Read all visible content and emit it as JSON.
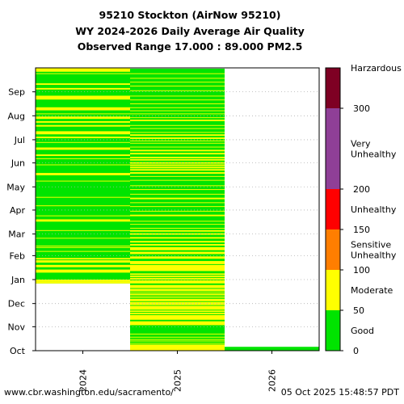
{
  "chart_data": {
    "type": "heatmap",
    "title_lines": [
      "95210 Stockton (AirNow 95210)",
      "WY 2024-2026 Daily Average Air Quality",
      "Observed Range 17.000 : 89.000 PM2.5"
    ],
    "x_categories": [
      "2024",
      "2025",
      "2026"
    ],
    "y_month_labels": [
      "Oct",
      "Nov",
      "Dec",
      "Jan",
      "Feb",
      "Mar",
      "Apr",
      "May",
      "Jun",
      "Jul",
      "Aug",
      "Sep"
    ],
    "y_month_start_days": [
      0,
      31,
      61,
      92,
      123,
      151,
      182,
      212,
      243,
      273,
      304,
      335
    ],
    "water_year_days": 366,
    "grid": "dotted horizontal at month starts",
    "category_colors": {
      "good": "#00e400",
      "moderate": "#ffff00"
    },
    "columns": [
      {
        "water_year": "2024",
        "first_day": 87,
        "last_day": 365,
        "moderate_ranges": [
          [
            87,
            88
          ],
          [
            89,
            91
          ],
          [
            101,
            104
          ],
          [
            108,
            110
          ],
          [
            114,
            116
          ],
          [
            118,
            119
          ],
          [
            128,
            128
          ],
          [
            133,
            133
          ],
          [
            135,
            135
          ],
          [
            145,
            145
          ],
          [
            155,
            155
          ],
          [
            167,
            169
          ],
          [
            174,
            174
          ],
          [
            187,
            187
          ],
          [
            198,
            198
          ],
          [
            219,
            219
          ],
          [
            227,
            229
          ],
          [
            240,
            240
          ],
          [
            248,
            248
          ],
          [
            252,
            253
          ],
          [
            260,
            262
          ],
          [
            269,
            269
          ],
          [
            275,
            276
          ],
          [
            280,
            283
          ],
          [
            290,
            291
          ],
          [
            295,
            296
          ],
          [
            300,
            302
          ],
          [
            306,
            306
          ],
          [
            311,
            314
          ],
          [
            325,
            329
          ],
          [
            338,
            339
          ],
          [
            344,
            345
          ],
          [
            358,
            358
          ],
          [
            361,
            365
          ]
        ]
      },
      {
        "water_year": "2025",
        "first_day": 0,
        "last_day": 364,
        "moderate_ranges": [
          [
            0,
            7
          ],
          [
            9,
            9
          ],
          [
            12,
            12
          ],
          [
            14,
            14
          ],
          [
            17,
            17
          ],
          [
            21,
            21
          ],
          [
            33,
            37
          ],
          [
            40,
            45
          ],
          [
            47,
            48
          ],
          [
            50,
            51
          ],
          [
            53,
            57
          ],
          [
            59,
            62
          ],
          [
            64,
            66
          ],
          [
            68,
            68
          ],
          [
            70,
            70
          ],
          [
            72,
            73
          ],
          [
            75,
            75
          ],
          [
            77,
            79
          ],
          [
            81,
            84
          ],
          [
            87,
            90
          ],
          [
            92,
            93
          ],
          [
            95,
            96
          ],
          [
            98,
            99
          ],
          [
            103,
            110
          ],
          [
            112,
            115
          ],
          [
            119,
            121
          ],
          [
            125,
            127
          ],
          [
            130,
            133
          ],
          [
            136,
            137
          ],
          [
            140,
            141
          ],
          [
            145,
            146
          ],
          [
            150,
            151
          ],
          [
            154,
            155
          ],
          [
            158,
            158
          ],
          [
            163,
            163
          ],
          [
            167,
            167
          ],
          [
            174,
            175
          ],
          [
            180,
            180
          ],
          [
            186,
            186
          ],
          [
            191,
            191
          ],
          [
            196,
            197
          ],
          [
            202,
            202
          ],
          [
            208,
            208
          ],
          [
            213,
            213
          ],
          [
            220,
            220
          ],
          [
            225,
            225
          ],
          [
            229,
            230
          ],
          [
            233,
            234
          ],
          [
            236,
            237
          ],
          [
            239,
            240
          ],
          [
            242,
            243
          ],
          [
            246,
            247
          ],
          [
            249,
            250
          ],
          [
            254,
            255
          ],
          [
            258,
            259
          ],
          [
            263,
            263
          ],
          [
            268,
            268
          ],
          [
            271,
            271
          ],
          [
            274,
            275
          ],
          [
            278,
            279
          ],
          [
            282,
            282
          ],
          [
            287,
            287
          ],
          [
            291,
            291
          ],
          [
            297,
            298
          ],
          [
            301,
            301
          ],
          [
            306,
            306
          ],
          [
            310,
            310
          ],
          [
            314,
            314
          ],
          [
            319,
            319
          ],
          [
            324,
            324
          ],
          [
            329,
            329
          ],
          [
            336,
            336
          ],
          [
            342,
            342
          ],
          [
            347,
            347
          ],
          [
            352,
            352
          ],
          [
            358,
            358
          ]
        ]
      },
      {
        "water_year": "2026",
        "first_day": 0,
        "last_day": 4,
        "moderate_ranges": []
      }
    ],
    "colorbar": {
      "segments": [
        {
          "from": 0,
          "to": 50,
          "color": "#00e400"
        },
        {
          "from": 50,
          "to": 100,
          "color": "#ffff00"
        },
        {
          "from": 100,
          "to": 150,
          "color": "#ff7e00"
        },
        {
          "from": 150,
          "to": 200,
          "color": "#ff0000"
        },
        {
          "from": 200,
          "to": 300,
          "color": "#8f3f97"
        },
        {
          "from": 300,
          "to": 350,
          "color": "#7e0023"
        }
      ],
      "range": [
        0,
        350
      ],
      "tick_values": [
        "0",
        "50",
        "100",
        "150",
        "200",
        "300"
      ],
      "category_labels": [
        {
          "lines": [
            "Good"
          ],
          "at": 25
        },
        {
          "lines": [
            "Moderate"
          ],
          "at": 75
        },
        {
          "lines": [
            "Sensitive",
            "Unhealthy"
          ],
          "at": 125
        },
        {
          "lines": [
            "Unhealthy"
          ],
          "at": 175
        },
        {
          "lines": [
            "Very",
            "Unhealthy"
          ],
          "at": 250
        },
        {
          "lines": [
            "Harzardous"
          ],
          "at": 350
        }
      ]
    }
  },
  "footer": {
    "url": "www.cbr.washington.edu/sacramento/",
    "timestamp": "05 Oct 2025 15:48:57 PDT"
  }
}
